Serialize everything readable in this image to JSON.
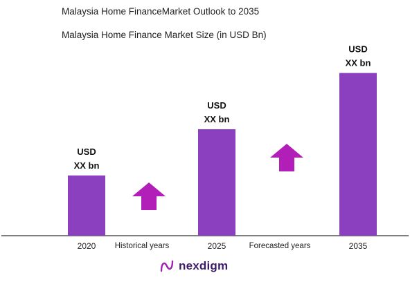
{
  "header": {
    "title": "Malaysia Home FinanceMarket Outlook to 2035",
    "subtitle": "Malaysia Home Finance Market Size (in USD Bn)"
  },
  "chart_data": {
    "type": "bar",
    "categories": [
      "2020",
      "2025",
      "2035"
    ],
    "values": [
      3.0,
      5.3,
      8.1
    ],
    "value_labels": [
      {
        "line1": "USD",
        "line2": "XX bn"
      },
      {
        "line1": "USD",
        "line2": "XX bn"
      },
      {
        "line1": "USD",
        "line2": "XX bn"
      }
    ],
    "period_labels": [
      "Historical years",
      "Forecasted years"
    ],
    "ylim": [
      0,
      8.5
    ],
    "grid": false,
    "bar_color": "#8b40bf",
    "arrow_color": "#b21fb8",
    "axis_color": "#333333"
  },
  "brand": {
    "name": "nexdigm",
    "color": "#3b1a6b",
    "icon": "nexdigm-logo-icon"
  }
}
